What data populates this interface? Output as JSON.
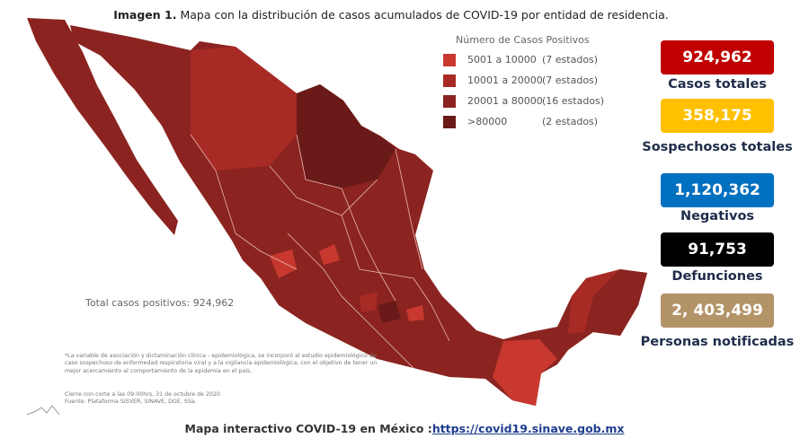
{
  "header": {
    "title_bold": "Imagen 1.",
    "title": "Mapa con la distribución de casos acumulados de COVID-19 por entidad de residencia."
  },
  "legend": {
    "title": "Número de Casos Positivos",
    "items": [
      {
        "range": "5001 a 10000",
        "count": "(7 estados)",
        "color": "#c8382f"
      },
      {
        "range": "10001 a 20000",
        "count": "(7 estados)",
        "color": "#a82a25"
      },
      {
        "range": "20001 a 80000",
        "count": "(16 estados)",
        "color": "#8b2420"
      },
      {
        "range": ">80000",
        "count": "(2 estados)",
        "color": "#6a1a18"
      }
    ]
  },
  "map": {
    "total": "Total casos positivos: 924,962",
    "footnote": "*La variable de asociación y dictaminación clínica - epidemiológica, se incorporó al estudio epidemiológico de caso sospechoso de enfermedad respiratoria viral y a la vigilancia epidemiológica, con el objetivo de tener un mejor acercamiento al comportamiento de la epidemia en el país.",
    "cutoff": "Cierre con corte a las 09:00hrs, 31 de octubre de 2020",
    "source": "Fuente: Plataforma SISVER, SINAVE, DGE, SSa."
  },
  "stats": [
    {
      "value": "924,962",
      "label": "Casos totales",
      "color": "#c00000"
    },
    {
      "value": "358,175",
      "label": "Sospechosos totales",
      "color": "#ffc000"
    },
    {
      "value": "1,120,362",
      "label": "Negativos",
      "color": "#0070c0"
    },
    {
      "value": "91,753",
      "label": "Defunciones",
      "color": "#000000"
    },
    {
      "value": "2, 403,499",
      "label": "Personas notificadas",
      "color": "#b39368"
    }
  ],
  "footer": {
    "text": "Mapa interactivo COVID-19 en México :",
    "link": "https://covid19.sinave.gob.mx"
  }
}
